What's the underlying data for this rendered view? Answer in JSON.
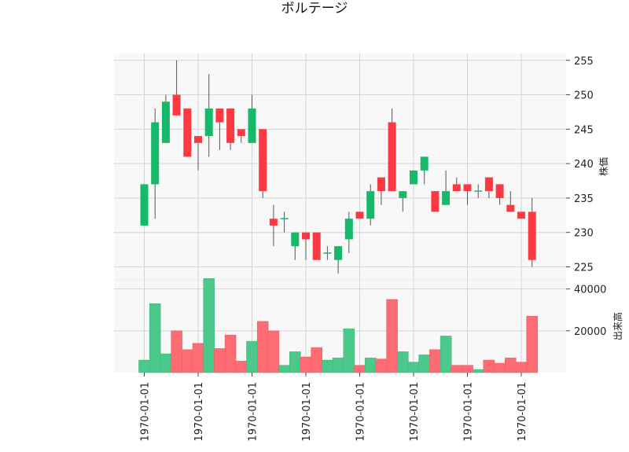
{
  "chart_data": {
    "type": "candlestick",
    "title": "ボルテージ",
    "x_tick_labels": [
      "1970-01-01",
      "1970-01-01",
      "1970-01-01",
      "1970-01-01",
      "1970-01-01",
      "1970-01-01",
      "1970-01-01",
      "1970-01-01"
    ],
    "price_axis": {
      "label": "株価",
      "ylim": [
        223,
        256
      ],
      "ticks": [
        225,
        230,
        235,
        240,
        245,
        250,
        255
      ]
    },
    "volume_axis": {
      "label": "出来高",
      "ylim": [
        0,
        44000
      ],
      "ticks": [
        20000,
        40000
      ]
    },
    "grid": true,
    "colors": {
      "up": "#16b96a",
      "down": "#fa3a42",
      "up_volume": "#4bc98b",
      "down_volume": "#fd6c72",
      "wick": "#555555",
      "panel_bg": "#f8f8f8",
      "grid": "#d4d4d4"
    },
    "candles": [
      {
        "o": 231,
        "h": 237,
        "l": 231,
        "c": 237,
        "v": 6000
      },
      {
        "o": 237,
        "h": 248,
        "l": 232,
        "c": 246,
        "v": 33000
      },
      {
        "o": 243,
        "h": 250,
        "l": 243,
        "c": 249,
        "v": 9000
      },
      {
        "o": 250,
        "h": 255,
        "l": 247,
        "c": 247,
        "v": 20000
      },
      {
        "o": 248,
        "h": 248,
        "l": 241,
        "c": 241,
        "v": 11000
      },
      {
        "o": 244,
        "h": 244,
        "l": 239,
        "c": 243,
        "v": 14000
      },
      {
        "o": 244,
        "h": 253,
        "l": 241,
        "c": 248,
        "v": 45000
      },
      {
        "o": 248,
        "h": 248,
        "l": 242,
        "c": 246,
        "v": 11500
      },
      {
        "o": 248,
        "h": 248,
        "l": 242,
        "c": 243,
        "v": 18000
      },
      {
        "o": 245,
        "h": 245,
        "l": 243,
        "c": 244,
        "v": 5500
      },
      {
        "o": 243,
        "h": 250,
        "l": 243,
        "c": 248,
        "v": 15000
      },
      {
        "o": 245,
        "h": 245,
        "l": 235,
        "c": 236,
        "v": 24500
      },
      {
        "o": 232,
        "h": 234,
        "l": 228,
        "c": 231,
        "v": 20000
      },
      {
        "o": 232,
        "h": 233,
        "l": 230,
        "c": 232,
        "v": 3500
      },
      {
        "o": 228,
        "h": 230,
        "l": 226,
        "c": 230,
        "v": 10000
      },
      {
        "o": 230,
        "h": 230,
        "l": 226,
        "c": 229,
        "v": 7500
      },
      {
        "o": 230,
        "h": 230,
        "l": 226,
        "c": 226,
        "v": 12000
      },
      {
        "o": 227,
        "h": 228,
        "l": 226,
        "c": 227,
        "v": 6000
      },
      {
        "o": 226,
        "h": 228,
        "l": 224,
        "c": 228,
        "v": 7000
      },
      {
        "o": 229,
        "h": 233,
        "l": 227,
        "c": 232,
        "v": 21000
      },
      {
        "o": 233,
        "h": 233,
        "l": 232,
        "c": 232,
        "v": 3500
      },
      {
        "o": 232,
        "h": 237,
        "l": 231,
        "c": 236,
        "v": 7000
      },
      {
        "o": 238,
        "h": 238,
        "l": 234,
        "c": 236,
        "v": 6500
      },
      {
        "o": 246,
        "h": 248,
        "l": 236,
        "c": 236,
        "v": 35000
      },
      {
        "o": 235,
        "h": 236,
        "l": 233,
        "c": 236,
        "v": 10000
      },
      {
        "o": 237,
        "h": 239,
        "l": 237,
        "c": 239,
        "v": 5000
      },
      {
        "o": 239,
        "h": 241,
        "l": 237,
        "c": 241,
        "v": 8500
      },
      {
        "o": 236,
        "h": 236,
        "l": 233,
        "c": 233,
        "v": 11000
      },
      {
        "o": 234,
        "h": 239,
        "l": 234,
        "c": 236,
        "v": 17500
      },
      {
        "o": 237,
        "h": 238,
        "l": 236,
        "c": 236,
        "v": 3500
      },
      {
        "o": 237,
        "h": 237,
        "l": 234,
        "c": 236,
        "v": 3500
      },
      {
        "o": 236,
        "h": 237,
        "l": 235,
        "c": 236,
        "v": 1500
      },
      {
        "o": 238,
        "h": 238,
        "l": 235,
        "c": 236,
        "v": 6000
      },
      {
        "o": 237,
        "h": 237,
        "l": 234,
        "c": 235,
        "v": 4500
      },
      {
        "o": 234,
        "h": 236,
        "l": 233,
        "c": 233,
        "v": 7000
      },
      {
        "o": 233,
        "h": 233,
        "l": 232,
        "c": 232,
        "v": 5000
      },
      {
        "o": 233,
        "h": 235,
        "l": 225,
        "c": 226,
        "v": 27000
      }
    ]
  }
}
